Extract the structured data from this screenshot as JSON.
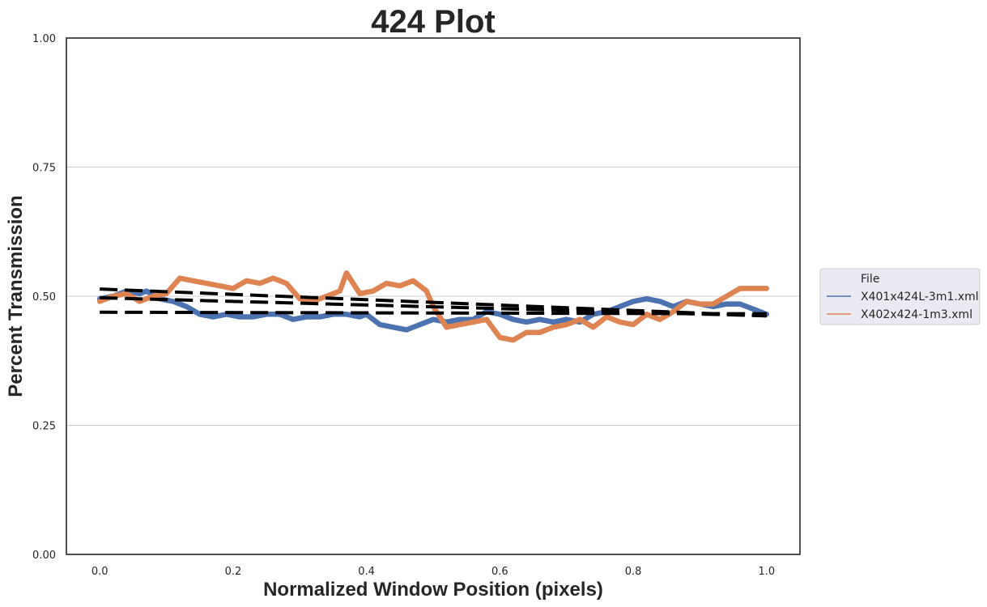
{
  "chart_data": {
    "type": "line",
    "title": "424 Plot",
    "xlabel": "Normalized Window Position (pixels)",
    "ylabel": "Percent Transmission",
    "xlim": [
      -0.05,
      1.05
    ],
    "ylim": [
      0.0,
      1.0
    ],
    "xticks": [
      "0.0",
      "0.2",
      "0.4",
      "0.6",
      "0.8",
      "1.0"
    ],
    "yticks": [
      "0.00",
      "0.25",
      "0.50",
      "0.75",
      "1.00"
    ],
    "grid": "horizontal",
    "legend": {
      "title": "File",
      "placement": "right-outside",
      "entries": [
        "X401x424L-3m1.xml",
        "X402x424-1m3.xml"
      ]
    },
    "series": [
      {
        "name": "X401x424L-3m1.xml",
        "color": "#4c72b0",
        "x": [
          0.0,
          0.02,
          0.04,
          0.06,
          0.07,
          0.09,
          0.11,
          0.13,
          0.15,
          0.17,
          0.19,
          0.21,
          0.23,
          0.25,
          0.27,
          0.29,
          0.31,
          0.33,
          0.35,
          0.37,
          0.39,
          0.4,
          0.42,
          0.44,
          0.46,
          0.48,
          0.5,
          0.52,
          0.54,
          0.56,
          0.58,
          0.6,
          0.62,
          0.64,
          0.66,
          0.68,
          0.7,
          0.72,
          0.74,
          0.76,
          0.78,
          0.8,
          0.82,
          0.84,
          0.86,
          0.88,
          0.9,
          0.92,
          0.94,
          0.96,
          0.98,
          1.0
        ],
        "y": [
          0.495,
          0.5,
          0.51,
          0.505,
          0.51,
          0.495,
          0.49,
          0.48,
          0.465,
          0.46,
          0.465,
          0.46,
          0.46,
          0.465,
          0.465,
          0.455,
          0.46,
          0.46,
          0.465,
          0.465,
          0.46,
          0.465,
          0.445,
          0.44,
          0.435,
          0.445,
          0.455,
          0.45,
          0.455,
          0.455,
          0.47,
          0.465,
          0.455,
          0.45,
          0.455,
          0.45,
          0.455,
          0.45,
          0.465,
          0.47,
          0.48,
          0.49,
          0.495,
          0.49,
          0.48,
          0.49,
          0.485,
          0.48,
          0.485,
          0.485,
          0.475,
          0.465
        ]
      },
      {
        "name": "X402x424-1m3.xml",
        "color": "#dd8452",
        "x": [
          0.0,
          0.02,
          0.04,
          0.06,
          0.08,
          0.1,
          0.12,
          0.14,
          0.16,
          0.18,
          0.2,
          0.22,
          0.24,
          0.26,
          0.28,
          0.3,
          0.32,
          0.34,
          0.36,
          0.37,
          0.39,
          0.41,
          0.43,
          0.45,
          0.47,
          0.49,
          0.5,
          0.52,
          0.54,
          0.56,
          0.58,
          0.6,
          0.62,
          0.64,
          0.66,
          0.68,
          0.7,
          0.72,
          0.74,
          0.76,
          0.78,
          0.8,
          0.82,
          0.84,
          0.86,
          0.88,
          0.9,
          0.92,
          0.94,
          0.96,
          0.98,
          1.0
        ],
        "y": [
          0.49,
          0.5,
          0.505,
          0.49,
          0.5,
          0.505,
          0.535,
          0.53,
          0.525,
          0.52,
          0.515,
          0.53,
          0.525,
          0.535,
          0.525,
          0.495,
          0.49,
          0.5,
          0.51,
          0.545,
          0.505,
          0.51,
          0.525,
          0.52,
          0.53,
          0.51,
          0.48,
          0.44,
          0.445,
          0.45,
          0.455,
          0.42,
          0.415,
          0.43,
          0.43,
          0.44,
          0.445,
          0.455,
          0.44,
          0.46,
          0.45,
          0.445,
          0.465,
          0.455,
          0.47,
          0.49,
          0.485,
          0.485,
          0.5,
          0.515,
          0.515,
          0.515
        ]
      }
    ],
    "trend_lines": [
      {
        "color": "#000000",
        "style": "dashed",
        "x": [
          0.0,
          1.0
        ],
        "y": [
          0.514,
          0.462
        ]
      },
      {
        "color": "#000000",
        "style": "dashed",
        "x": [
          0.0,
          1.0
        ],
        "y": [
          0.497,
          0.462
        ]
      },
      {
        "color": "#000000",
        "style": "dashed",
        "x": [
          0.0,
          1.0
        ],
        "y": [
          0.469,
          0.466
        ]
      }
    ]
  }
}
